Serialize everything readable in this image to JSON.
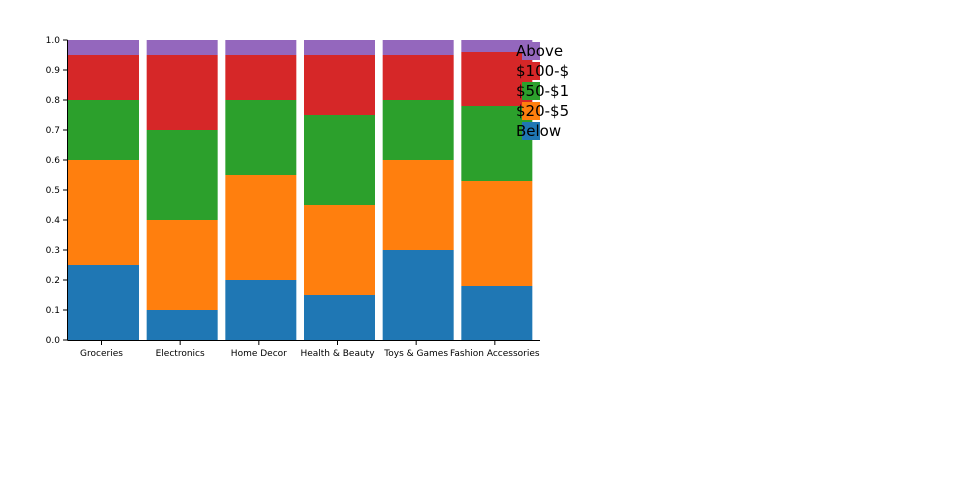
{
  "chart_data": {
    "type": "bar",
    "stacked": true,
    "categories": [
      "Groceries",
      "Electronics",
      "Home Decor",
      "Health & Beauty",
      "Toys & Games",
      "Fashion Accessories"
    ],
    "series": [
      {
        "name": "Below",
        "color": "#1f77b4",
        "values": [
          0.25,
          0.1,
          0.2,
          0.15,
          0.3,
          0.18
        ]
      },
      {
        "name": "$20-$5",
        "color": "#ff7f0e",
        "values": [
          0.35,
          0.3,
          0.35,
          0.3,
          0.3,
          0.35
        ]
      },
      {
        "name": "$50-$1",
        "color": "#2ca02c",
        "values": [
          0.2,
          0.3,
          0.25,
          0.3,
          0.2,
          0.25
        ]
      },
      {
        "name": "$100-$",
        "color": "#d62728",
        "values": [
          0.15,
          0.25,
          0.15,
          0.2,
          0.15,
          0.18
        ]
      },
      {
        "name": "Above",
        "color": "#9467bd",
        "values": [
          0.05,
          0.05,
          0.05,
          0.05,
          0.05,
          0.04
        ]
      }
    ],
    "ylim": [
      0,
      1
    ],
    "yticks": [
      "0.0",
      "0.1",
      "0.2",
      "0.3",
      "0.4",
      "0.5",
      "0.6",
      "0.7",
      "0.8",
      "0.9",
      "1.0"
    ],
    "grid": false,
    "legend_position": "top-right",
    "legend_order": [
      "Above",
      "$100-$",
      "$50-$1",
      "$20-$5",
      "Below"
    ]
  }
}
